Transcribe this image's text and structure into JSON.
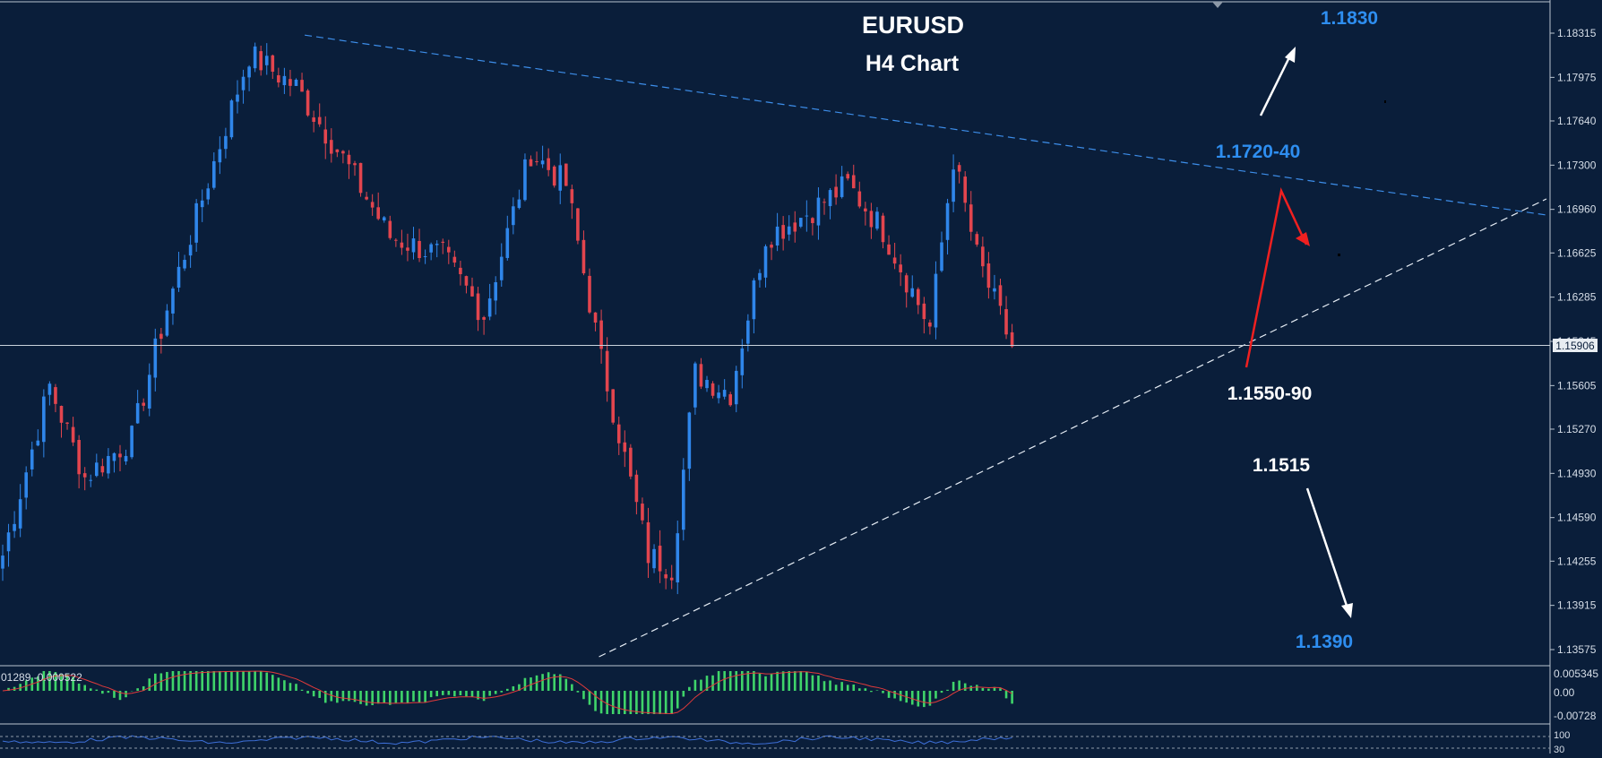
{
  "chart": {
    "title": "EURUSD",
    "subtitle": "H4 Chart",
    "current_price": "1.15906",
    "indicator_readout": "01289 -0.000522"
  },
  "colors": {
    "background": "#0a1e3a",
    "bull": "#2f86ea",
    "bear": "#e2454e",
    "hist": "#3fd46a",
    "signal": "#e23a3a",
    "trendline_top": "#3d8eea",
    "trendline_bottom": "#e6edf5",
    "label_blue": "#2e8ef0",
    "label_white": "#ffffff",
    "projection_red": "#f02020",
    "grid_text": "#d6dee8"
  },
  "annotations": [
    {
      "text": "1.1830",
      "color": "blue",
      "price": 1.183
    },
    {
      "text": "1.1720-40",
      "color": "blue",
      "price": 1.173
    },
    {
      "text": "1.1550-90",
      "color": "white",
      "price": 1.157
    },
    {
      "text": "1.1515",
      "color": "white",
      "price": 1.1515
    },
    {
      "text": "1.1390",
      "color": "blue",
      "price": 1.139
    }
  ],
  "chart_data": {
    "type": "candlestick",
    "title": "EURUSD",
    "subtitle": "H4 Chart",
    "y_axis_ticks": [
      "1.18315",
      "1.17975",
      "1.17640",
      "1.17300",
      "1.16960",
      "1.16625",
      "1.16285",
      "1.15945",
      "1.15605",
      "1.15270",
      "1.14930",
      "1.14590",
      "1.14255",
      "1.13915",
      "1.13575"
    ],
    "ylim": [
      1.1345,
      1.1845
    ],
    "current_price": 1.15906,
    "key_points": [
      {
        "index": 0,
        "price": 1.143
      },
      {
        "index": 8,
        "price": 1.156
      },
      {
        "index": 14,
        "price": 1.149
      },
      {
        "index": 22,
        "price": 1.152
      },
      {
        "index": 28,
        "price": 1.162
      },
      {
        "index": 38,
        "price": 1.176
      },
      {
        "index": 42,
        "price": 1.1815
      },
      {
        "index": 50,
        "price": 1.179
      },
      {
        "index": 58,
        "price": 1.1735
      },
      {
        "index": 66,
        "price": 1.1675
      },
      {
        "index": 75,
        "price": 1.166
      },
      {
        "index": 82,
        "price": 1.1615
      },
      {
        "index": 90,
        "price": 1.174
      },
      {
        "index": 96,
        "price": 1.1715
      },
      {
        "index": 102,
        "price": 1.158
      },
      {
        "index": 110,
        "price": 1.143
      },
      {
        "index": 114,
        "price": 1.142
      },
      {
        "index": 118,
        "price": 1.157
      },
      {
        "index": 124,
        "price": 1.1555
      },
      {
        "index": 130,
        "price": 1.1675
      },
      {
        "index": 136,
        "price": 1.169
      },
      {
        "index": 144,
        "price": 1.1715
      },
      {
        "index": 150,
        "price": 1.168
      },
      {
        "index": 158,
        "price": 1.1605
      },
      {
        "index": 162,
        "price": 1.1735
      },
      {
        "index": 166,
        "price": 1.166
      },
      {
        "index": 172,
        "price": 1.159
      }
    ],
    "trendlines": [
      {
        "name": "descending resistance",
        "from": {
          "index": 42,
          "price": 1.183
        },
        "to": {
          "index": 220,
          "price": 1.169
        }
      },
      {
        "name": "ascending support",
        "from": {
          "index": 101,
          "price": 1.1352
        },
        "to": {
          "index": 220,
          "price": 1.1705
        }
      }
    ],
    "projections": [
      {
        "kind": "bounce",
        "points": [
          {
            "index": 178,
            "price": 1.157
          },
          {
            "index": 182,
            "price": 1.1715
          },
          {
            "index": 186,
            "price": 1.1665
          }
        ]
      },
      {
        "kind": "breakout-up",
        "points": [
          {
            "index": 180,
            "price": 1.1765
          },
          {
            "index": 184,
            "price": 1.1818
          }
        ]
      },
      {
        "kind": "breakdown",
        "points": [
          {
            "index": 186,
            "price": 1.1505
          },
          {
            "index": 192,
            "price": 1.1405
          }
        ]
      }
    ],
    "indicator_ticks": [
      "0.005345",
      "0.00",
      "-0.00728"
    ],
    "oscillator_ticks": [
      "100",
      "30"
    ]
  }
}
